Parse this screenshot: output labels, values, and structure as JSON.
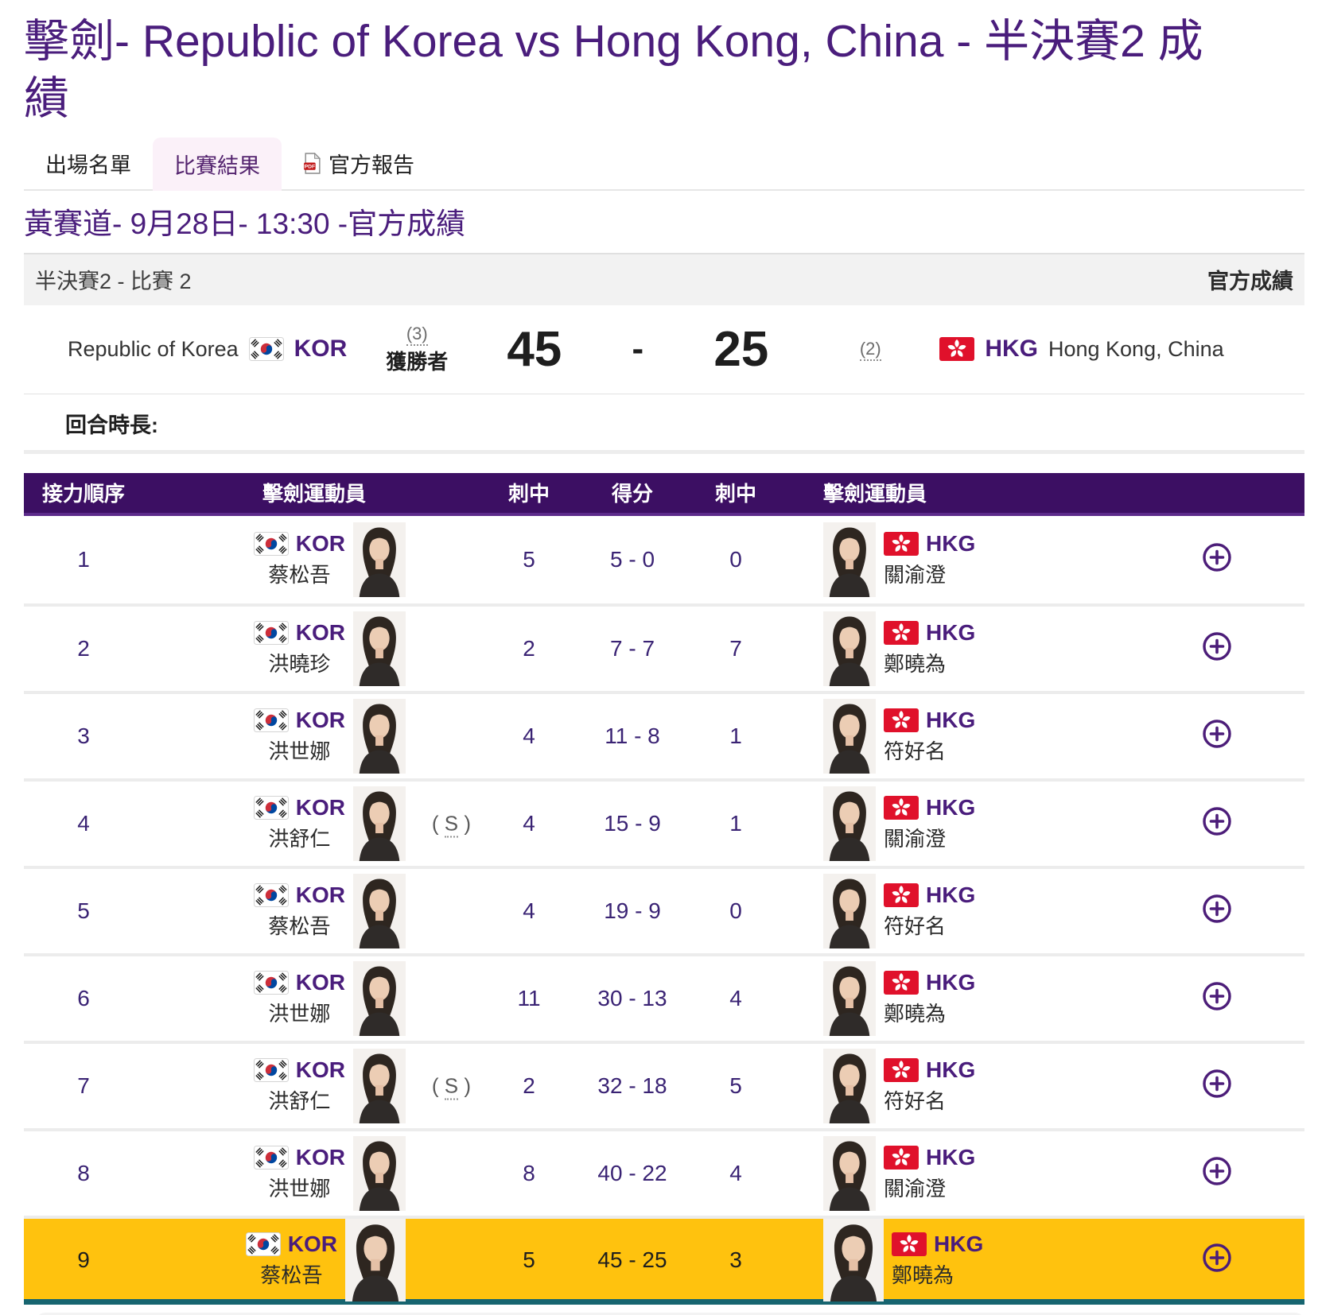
{
  "header": {
    "title": "擊劍- Republic of Korea vs Hong Kong, China - 半決賽2 成績"
  },
  "tabs": [
    {
      "label": "出場名單",
      "active": false
    },
    {
      "label": "比賽結果",
      "active": true
    },
    {
      "label": "官方報告",
      "active": false,
      "icon": "pdf-icon"
    }
  ],
  "subtitle": "黃賽道- 9月28日- 13:30 -官方成績",
  "match_bar": {
    "left": "半決賽2 - 比賽 2",
    "right": "官方成績"
  },
  "score": {
    "team1": {
      "name": "Republic of Korea",
      "code": "KOR",
      "seed": "(3)",
      "status": "獲勝者",
      "score": "45"
    },
    "separator": "-",
    "team2": {
      "name": "Hong Kong, China",
      "code": "HKG",
      "seed": "(2)",
      "score": "25"
    }
  },
  "round_duration_label": "回合時長:",
  "table": {
    "headers": [
      "接力順序",
      "擊劍運動員",
      "刺中",
      "得分",
      "刺中",
      "擊劍運動員"
    ],
    "rows": [
      {
        "order": "1",
        "kor": {
          "code": "KOR",
          "name": "蔡松吾"
        },
        "hits1": "5",
        "score": "5 - 0",
        "hits2": "0",
        "hkg": {
          "code": "HKG",
          "name": "關渝澄"
        },
        "highlight": false
      },
      {
        "order": "2",
        "kor": {
          "code": "KOR",
          "name": "洪曉珍"
        },
        "hits1": "2",
        "score": "7 - 7",
        "hits2": "7",
        "hkg": {
          "code": "HKG",
          "name": "鄭曉為"
        },
        "highlight": false
      },
      {
        "order": "3",
        "kor": {
          "code": "KOR",
          "name": "洪世娜"
        },
        "hits1": "4",
        "score": "11 - 8",
        "hits2": "1",
        "hkg": {
          "code": "HKG",
          "name": "符好名"
        },
        "highlight": false
      },
      {
        "order": "4",
        "kor": {
          "code": "KOR",
          "name": "洪舒仁",
          "marker": "( S )"
        },
        "hits1": "4",
        "score": "15 - 9",
        "hits2": "1",
        "hkg": {
          "code": "HKG",
          "name": "關渝澄"
        },
        "highlight": false
      },
      {
        "order": "5",
        "kor": {
          "code": "KOR",
          "name": "蔡松吾"
        },
        "hits1": "4",
        "score": "19 - 9",
        "hits2": "0",
        "hkg": {
          "code": "HKG",
          "name": "符好名"
        },
        "highlight": false
      },
      {
        "order": "6",
        "kor": {
          "code": "KOR",
          "name": "洪世娜"
        },
        "hits1": "11",
        "score": "30 - 13",
        "hits2": "4",
        "hkg": {
          "code": "HKG",
          "name": "鄭曉為"
        },
        "highlight": false
      },
      {
        "order": "7",
        "kor": {
          "code": "KOR",
          "name": "洪舒仁",
          "marker": "( S )"
        },
        "hits1": "2",
        "score": "32 - 18",
        "hits2": "5",
        "hkg": {
          "code": "HKG",
          "name": "符好名"
        },
        "highlight": false
      },
      {
        "order": "8",
        "kor": {
          "code": "KOR",
          "name": "洪世娜"
        },
        "hits1": "8",
        "score": "40 - 22",
        "hits2": "4",
        "hkg": {
          "code": "HKG",
          "name": "關渝澄"
        },
        "highlight": false
      },
      {
        "order": "9",
        "kor": {
          "code": "KOR",
          "name": "蔡松吾"
        },
        "hits1": "5",
        "score": "45 - 25",
        "hits2": "3",
        "hkg": {
          "code": "HKG",
          "name": "鄭曉為"
        },
        "highlight": true
      }
    ]
  },
  "colors": {
    "accent_purple": "#4a1d7c",
    "table_header_purple": "#3c0f63",
    "number_purple": "#3a2374",
    "highlight_yellow": "#ffc20e",
    "teal_border": "#176570",
    "kor_flag_red": "#cd2e3a",
    "kor_flag_blue": "#0047a0",
    "hkg_flag_red": "#e0112b"
  }
}
